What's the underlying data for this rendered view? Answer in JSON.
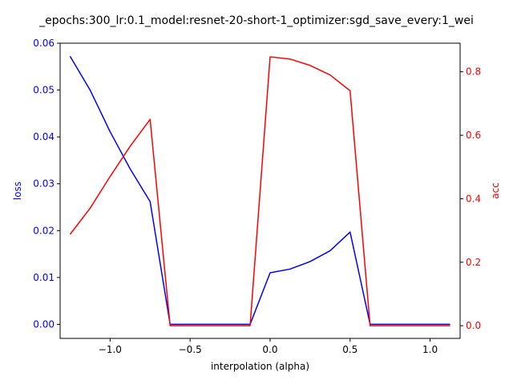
{
  "chart_data": {
    "type": "line",
    "title": "_epochs:300_lr:0.1_model:resnet-20-short-1_optimizer:sgd_save_every:1_wei",
    "xlabel": "interpolation (alpha)",
    "ylabel_left": "loss",
    "ylabel_right": "acc",
    "xlim": [
      -1.3125,
      1.1875
    ],
    "ylim_left": [
      -0.003,
      0.06
    ],
    "ylim_right": [
      -0.04,
      0.89
    ],
    "x_ticks": [
      -1.0,
      -0.5,
      0.0,
      0.5,
      1.0
    ],
    "x_tick_labels": [
      "−1.0",
      "−0.5",
      "0.0",
      "0.5",
      "1.0"
    ],
    "y_left_ticks": [
      0.0,
      0.01,
      0.02,
      0.03,
      0.04,
      0.05,
      0.06
    ],
    "y_left_tick_labels": [
      "0.00",
      "0.01",
      "0.02",
      "0.03",
      "0.04",
      "0.05",
      "0.06"
    ],
    "y_right_ticks": [
      0.0,
      0.2,
      0.4,
      0.6,
      0.8
    ],
    "y_right_tick_labels": [
      "0.0",
      "0.2",
      "0.4",
      "0.6",
      "0.8"
    ],
    "x": [
      -1.25,
      -1.125,
      -1.0,
      -0.875,
      -0.75,
      -0.625,
      -0.5,
      -0.375,
      -0.25,
      -0.125,
      0.0,
      0.125,
      0.25,
      0.375,
      0.5,
      0.625,
      0.75,
      0.875,
      1.0,
      1.125
    ],
    "series": [
      {
        "axis": "left",
        "color": "#0000ff",
        "values": [
          0.0572,
          0.05,
          0.0411,
          0.0332,
          0.0262,
          0.0,
          0.0,
          0.0,
          0.0,
          0.0,
          0.011,
          0.0118,
          0.0134,
          0.0157,
          0.0197,
          0.0,
          0.0,
          0.0,
          0.0,
          0.0
        ]
      },
      {
        "axis": "right",
        "color": "#ff0000",
        "values": [
          0.288,
          0.37,
          0.47,
          0.565,
          0.65,
          0.0,
          0.0,
          0.0,
          0.0,
          0.0,
          0.847,
          0.84,
          0.82,
          0.79,
          0.74,
          0.0,
          0.0,
          0.0,
          0.0,
          0.0
        ]
      }
    ],
    "grid": false,
    "legend": "none"
  }
}
